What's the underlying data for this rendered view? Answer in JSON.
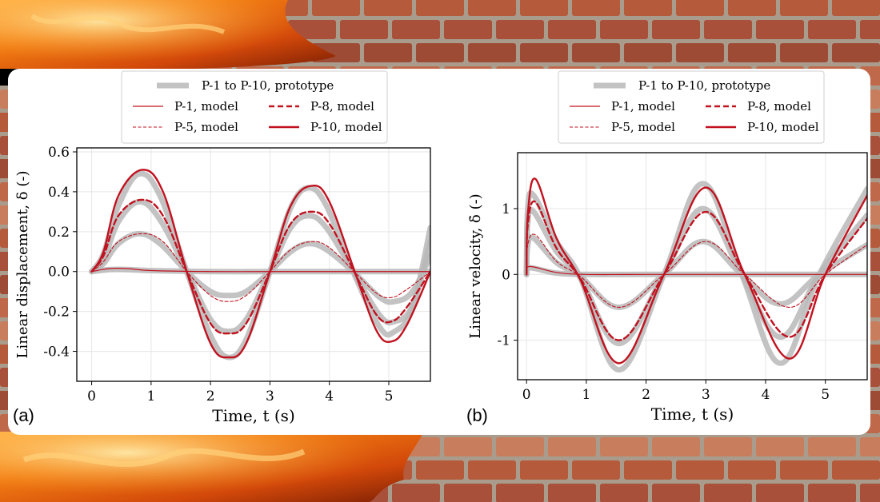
{
  "colors": {
    "prototype": "#b9b9b9",
    "model": "#c1121f",
    "axis": "#000000",
    "grid": "#e6e6e6",
    "brick": "#b55a3a",
    "mortar": "#a99c8c",
    "fire": "#e8590c"
  },
  "background": {
    "left_icon": "fire-icon",
    "right_icon": "brick-wall-icon"
  },
  "chart_data": [
    {
      "panel_label": "(a)",
      "type": "line",
      "xlabel": "Time, t (s)",
      "ylabel": "Linear displacement, δ (-)",
      "xlim": [
        -0.25,
        5.7
      ],
      "ylim": [
        -0.55,
        0.62
      ],
      "xticks": [
        0,
        1,
        2,
        3,
        4,
        5
      ],
      "yticks": [
        -0.4,
        -0.2,
        0.0,
        0.2,
        0.4,
        0.6
      ],
      "ytick_labels": [
        "-0.4",
        "-0.2",
        "0.0",
        "0.2",
        "0.4",
        "0.6"
      ],
      "grid": true,
      "legend": {
        "placement": "top",
        "prototype_label": "P-1 to P-10, prototype",
        "entries": [
          "P-1, model",
          "P-5, model",
          "P-8, model",
          "P-10, model"
        ]
      },
      "series": [
        {
          "group": "prototype",
          "x": [
            0,
            0.2,
            0.45,
            0.8,
            1.15,
            1.6,
            2.0,
            2.3,
            2.6,
            3.0,
            3.35,
            3.65,
            3.95,
            4.4,
            4.85,
            5.1,
            5.4,
            5.7
          ],
          "y": [
            0,
            0.09,
            0.33,
            0.49,
            0.38,
            0,
            -0.32,
            -0.43,
            -0.34,
            0,
            0.32,
            0.42,
            0.33,
            0,
            -0.28,
            -0.3,
            -0.18,
            0.22
          ]
        },
        {
          "group": "prototype",
          "x": [
            0,
            0.2,
            0.45,
            0.8,
            1.15,
            1.6,
            2.0,
            2.3,
            2.6,
            3.0,
            3.35,
            3.65,
            3.95,
            4.4,
            4.85,
            5.1,
            5.4,
            5.7
          ],
          "y": [
            0,
            0.06,
            0.25,
            0.35,
            0.26,
            0,
            -0.24,
            -0.3,
            -0.24,
            0,
            0.22,
            0.28,
            0.22,
            0,
            -0.22,
            -0.25,
            -0.17,
            0.15
          ]
        },
        {
          "group": "prototype",
          "x": [
            0,
            0.2,
            0.45,
            0.8,
            1.15,
            1.6,
            2.0,
            2.3,
            2.6,
            3.0,
            3.35,
            3.65,
            3.95,
            4.4,
            4.85,
            5.1,
            5.4,
            5.7
          ],
          "y": [
            0,
            0.04,
            0.14,
            0.19,
            0.14,
            0,
            -0.1,
            -0.12,
            -0.1,
            0,
            0.1,
            0.14,
            0.11,
            0,
            -0.13,
            -0.15,
            -0.1,
            0.08
          ]
        },
        {
          "group": "prototype",
          "x": [
            0,
            0.3,
            0.6,
            1.0,
            2.0,
            3.0,
            4.0,
            5.0,
            5.7
          ],
          "y": [
            0,
            0.01,
            0.01,
            0.005,
            0,
            0,
            0,
            0,
            0
          ]
        },
        {
          "group": "model",
          "name": "P-10, model",
          "style": "bold",
          "x": [
            0,
            0.2,
            0.45,
            0.85,
            1.2,
            1.6,
            2.0,
            2.3,
            2.6,
            3.0,
            3.35,
            3.7,
            4.0,
            4.45,
            4.8,
            5.05,
            5.3,
            5.7
          ],
          "y": [
            0,
            0.1,
            0.38,
            0.51,
            0.4,
            0,
            -0.36,
            -0.43,
            -0.36,
            0,
            0.33,
            0.43,
            0.35,
            -0.02,
            -0.3,
            -0.35,
            -0.27,
            0
          ]
        },
        {
          "group": "model",
          "name": "P-8, model",
          "style": "dashed-bold",
          "x": [
            0,
            0.2,
            0.45,
            0.85,
            1.2,
            1.6,
            2.0,
            2.3,
            2.6,
            3.0,
            3.35,
            3.7,
            4.0,
            4.45,
            4.8,
            5.05,
            5.3,
            5.7
          ],
          "y": [
            0,
            0.08,
            0.28,
            0.36,
            0.28,
            0,
            -0.26,
            -0.31,
            -0.26,
            0,
            0.24,
            0.3,
            0.24,
            -0.02,
            -0.22,
            -0.25,
            -0.18,
            0
          ]
        },
        {
          "group": "model",
          "name": "P-5, model",
          "style": "dashed-thin",
          "x": [
            0,
            0.2,
            0.45,
            0.85,
            1.2,
            1.6,
            2.0,
            2.3,
            2.6,
            3.0,
            3.35,
            3.7,
            4.0,
            4.45,
            4.8,
            5.05,
            5.3,
            5.7
          ],
          "y": [
            0,
            0.05,
            0.15,
            0.19,
            0.15,
            0,
            -0.12,
            -0.15,
            -0.12,
            0,
            0.11,
            0.15,
            0.12,
            -0.01,
            -0.11,
            -0.13,
            -0.09,
            0
          ]
        },
        {
          "group": "model",
          "name": "P-1, model",
          "style": "thin",
          "x": [
            0,
            0.3,
            0.6,
            1.0,
            2.0,
            3.0,
            4.0,
            5.0,
            5.7
          ],
          "y": [
            0,
            0.015,
            0.015,
            0.005,
            0,
            0,
            0,
            0,
            0
          ]
        }
      ]
    },
    {
      "panel_label": "(b)",
      "type": "line",
      "xlabel": "Time, t (s)",
      "ylabel": "Linear velocity, δ̇ (-)",
      "xlim": [
        -0.15,
        5.7
      ],
      "ylim": [
        -1.6,
        1.85
      ],
      "xticks": [
        0,
        1,
        2,
        3,
        4,
        5
      ],
      "yticks": [
        -1,
        0,
        1
      ],
      "ytick_labels": [
        "-1",
        "0",
        "1"
      ],
      "grid": true,
      "legend": {
        "placement": "top",
        "prototype_label": "P-1 to P-10, prototype",
        "entries": [
          "P-1, model",
          "P-5, model",
          "P-8, model",
          "P-10, model"
        ]
      },
      "series": [
        {
          "group": "prototype",
          "x": [
            0,
            0.02,
            0.12,
            0.5,
            0.9,
            1.55,
            2.3,
            2.95,
            3.6,
            4.25,
            4.9,
            5.7
          ],
          "y": [
            0,
            1.0,
            1.2,
            0.5,
            -0.05,
            -1.45,
            0,
            1.38,
            0,
            -1.35,
            0,
            1.3
          ]
        },
        {
          "group": "prototype",
          "x": [
            0,
            0.02,
            0.12,
            0.5,
            0.9,
            1.55,
            2.3,
            2.95,
            3.6,
            4.25,
            4.9,
            5.7
          ],
          "y": [
            0,
            0.8,
            0.95,
            0.35,
            -0.05,
            -1.05,
            0,
            1.0,
            0,
            -0.95,
            0,
            0.9
          ]
        },
        {
          "group": "prototype",
          "x": [
            0,
            0.02,
            0.12,
            0.5,
            0.9,
            1.55,
            2.3,
            2.95,
            3.6,
            4.25,
            4.9,
            5.7
          ],
          "y": [
            0,
            0.45,
            0.55,
            0.18,
            -0.03,
            -0.5,
            0,
            0.5,
            0,
            -0.45,
            0,
            0.45
          ]
        },
        {
          "group": "prototype",
          "x": [
            0,
            0.05,
            0.5,
            1.0,
            2.0,
            3.0,
            4.0,
            5.0,
            5.7
          ],
          "y": [
            0,
            0.1,
            0.02,
            0,
            0,
            0,
            0,
            0,
            0
          ]
        },
        {
          "group": "model",
          "name": "P-10, model",
          "style": "bold",
          "x": [
            0,
            0.02,
            0.15,
            0.5,
            0.9,
            1.55,
            2.3,
            3.0,
            3.65,
            4.4,
            5.0,
            5.7
          ],
          "y": [
            0,
            0.9,
            1.45,
            0.55,
            -0.08,
            -1.35,
            0,
            1.32,
            0,
            -1.28,
            0,
            1.2
          ]
        },
        {
          "group": "model",
          "name": "P-8, model",
          "style": "dashed-bold",
          "x": [
            0,
            0.02,
            0.15,
            0.5,
            0.9,
            1.55,
            2.3,
            3.0,
            3.65,
            4.4,
            5.0,
            5.7
          ],
          "y": [
            0,
            0.75,
            1.1,
            0.4,
            -0.06,
            -1.0,
            0,
            0.95,
            0,
            -0.95,
            0,
            0.85
          ]
        },
        {
          "group": "model",
          "name": "P-5, model",
          "style": "dashed-thin",
          "x": [
            0,
            0.02,
            0.15,
            0.5,
            0.9,
            1.55,
            2.3,
            3.0,
            3.65,
            4.4,
            5.0,
            5.7
          ],
          "y": [
            0,
            0.45,
            0.6,
            0.2,
            -0.03,
            -0.5,
            0,
            0.5,
            0,
            -0.5,
            0,
            0.45
          ]
        },
        {
          "group": "model",
          "name": "P-1, model",
          "style": "thin",
          "x": [
            0,
            0.05,
            0.5,
            1.0,
            2.0,
            3.0,
            4.0,
            5.0,
            5.7
          ],
          "y": [
            0,
            0.12,
            0.03,
            0,
            0,
            0,
            0,
            0,
            0
          ]
        }
      ]
    }
  ]
}
